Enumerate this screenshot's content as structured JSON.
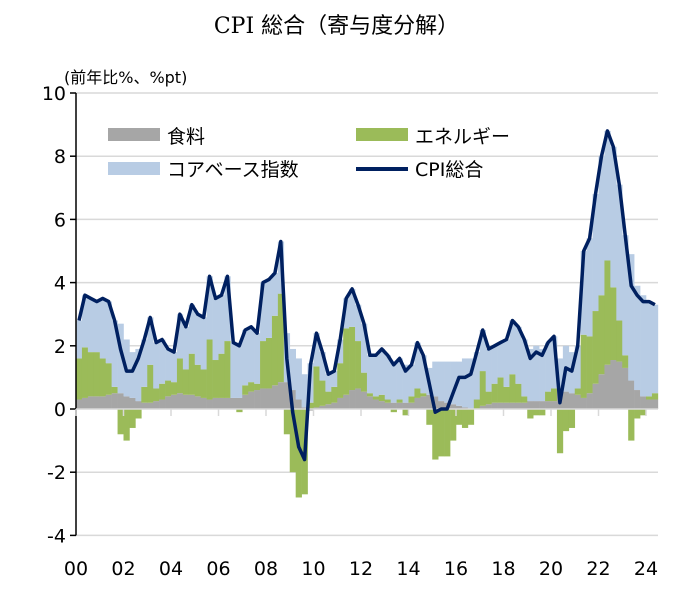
{
  "chart_data": {
    "type": "bar",
    "title": "CPI 総合（寄与度分解）",
    "ylabel": "(前年比%、%pt)",
    "xlabel": "",
    "ylim": [
      -4,
      10
    ],
    "yticks": [
      "10",
      "8",
      "6",
      "4",
      "2",
      "0",
      "-2",
      "-4"
    ],
    "ytick_values": [
      10,
      8,
      6,
      4,
      2,
      0,
      -2,
      -4
    ],
    "xticks": [
      "00",
      "02",
      "04",
      "06",
      "08",
      "10",
      "12",
      "14",
      "16",
      "18",
      "20",
      "22",
      "24"
    ],
    "x_start_year": 2000,
    "frequency": "quarterly",
    "grid": true,
    "legend_position": "top",
    "colors": {
      "food": "#a6a6a6",
      "energy": "#9bbb59",
      "core": "#b8cce4",
      "total": "#002060"
    },
    "legend": {
      "food": "食料",
      "energy": "エネルギー",
      "core": "コアベース指数",
      "total": "CPI総合"
    },
    "series": [
      {
        "name": "CPI総合",
        "key": "total",
        "values": [
          2.8,
          3.6,
          3.5,
          3.4,
          3.5,
          3.4,
          2.8,
          1.9,
          1.2,
          1.2,
          1.6,
          2.2,
          2.9,
          2.1,
          2.2,
          1.9,
          1.8,
          3.0,
          2.6,
          3.3,
          3.0,
          2.9,
          4.2,
          3.5,
          3.6,
          4.2,
          2.1,
          2.0,
          2.5,
          2.6,
          2.4,
          4.0,
          4.1,
          4.3,
          5.3,
          1.6,
          -0.1,
          -1.2,
          -1.6,
          1.4,
          2.4,
          1.8,
          1.1,
          1.2,
          2.2,
          3.5,
          3.8,
          3.3,
          2.7,
          1.7,
          1.7,
          1.9,
          1.7,
          1.4,
          1.6,
          1.2,
          1.4,
          2.1,
          1.7,
          0.8,
          -0.1,
          0.0,
          0.0,
          0.5,
          1.0,
          1.0,
          1.1,
          1.8,
          2.5,
          1.9,
          2.0,
          2.1,
          2.2,
          2.8,
          2.6,
          2.2,
          1.6,
          1.8,
          1.7,
          2.1,
          2.3,
          0.2,
          1.3,
          1.2,
          2.0,
          5.0,
          5.4,
          6.8,
          8.0,
          8.8,
          8.3,
          7.1,
          5.5,
          3.9,
          3.6,
          3.4,
          3.4,
          3.3
        ]
      },
      {
        "name": "エネルギー",
        "key": "energy",
        "values": [
          1.3,
          1.6,
          1.4,
          1.4,
          1.2,
          1.0,
          0.2,
          -0.8,
          -1.0,
          -0.6,
          -0.3,
          0.5,
          1.2,
          0.4,
          0.5,
          0.5,
          0.4,
          1.1,
          0.8,
          1.3,
          1.0,
          0.9,
          1.9,
          1.2,
          1.4,
          1.8,
          0.0,
          -0.1,
          0.3,
          0.3,
          0.2,
          1.5,
          1.6,
          2.2,
          2.8,
          -0.8,
          -2.0,
          -2.8,
          -2.7,
          0.2,
          1.3,
          0.8,
          0.4,
          0.5,
          1.1,
          2.1,
          2.0,
          1.5,
          0.6,
          0.1,
          0.1,
          0.2,
          0.1,
          -0.1,
          0.1,
          -0.2,
          0.2,
          0.3,
          0.1,
          -0.5,
          -1.6,
          -1.5,
          -1.5,
          -1.0,
          -0.5,
          -0.6,
          -0.5,
          0.3,
          1.1,
          0.4,
          0.6,
          0.8,
          0.5,
          0.9,
          0.6,
          0.2,
          -0.3,
          -0.2,
          -0.2,
          0.3,
          0.4,
          -1.4,
          -0.7,
          -0.6,
          0.2,
          2.0,
          1.8,
          2.3,
          2.5,
          3.3,
          2.3,
          1.3,
          0.4,
          -1.0,
          -0.3,
          -0.2,
          0.1,
          0.2
        ]
      },
      {
        "name": "食料",
        "key": "food",
        "values": [
          0.3,
          0.35,
          0.4,
          0.4,
          0.4,
          0.45,
          0.5,
          0.5,
          0.4,
          0.35,
          0.25,
          0.2,
          0.2,
          0.25,
          0.3,
          0.4,
          0.45,
          0.5,
          0.45,
          0.45,
          0.4,
          0.35,
          0.3,
          0.35,
          0.35,
          0.35,
          0.35,
          0.35,
          0.45,
          0.55,
          0.6,
          0.65,
          0.65,
          0.75,
          0.85,
          0.85,
          0.6,
          0.3,
          0.05,
          -0.05,
          0.05,
          0.1,
          0.15,
          0.2,
          0.35,
          0.45,
          0.6,
          0.65,
          0.55,
          0.4,
          0.3,
          0.25,
          0.2,
          0.2,
          0.2,
          0.2,
          0.2,
          0.35,
          0.4,
          0.45,
          0.4,
          0.25,
          0.2,
          0.15,
          0.1,
          0.05,
          0.0,
          0.0,
          0.1,
          0.15,
          0.2,
          0.2,
          0.2,
          0.2,
          0.2,
          0.2,
          0.25,
          0.25,
          0.25,
          0.25,
          0.25,
          0.6,
          0.55,
          0.5,
          0.45,
          0.35,
          0.5,
          0.8,
          1.1,
          1.4,
          1.55,
          1.5,
          1.3,
          0.9,
          0.6,
          0.4,
          0.3,
          0.3
        ]
      }
    ]
  }
}
